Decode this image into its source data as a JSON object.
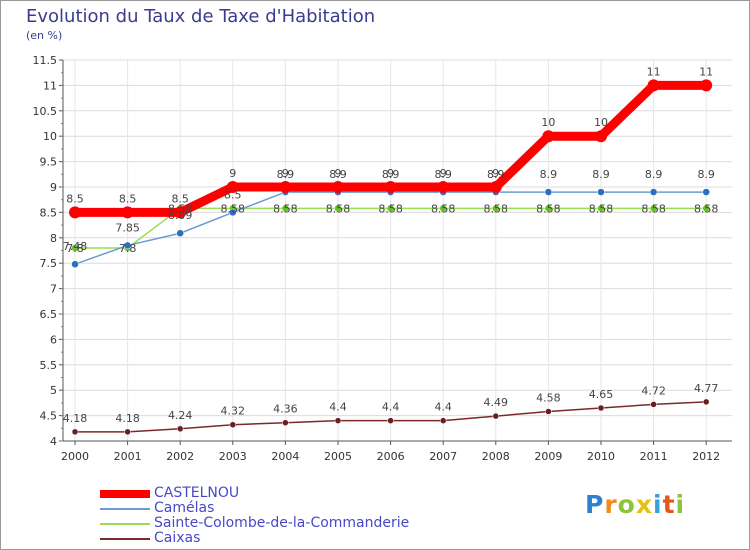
{
  "chart_data": {
    "type": "line",
    "title": "Evolution du Taux de Taxe d'Habitation",
    "subtitle": "(en %)",
    "ylim": [
      4,
      11.5
    ],
    "x": [
      "2000",
      "2001",
      "2002",
      "2003",
      "2004",
      "2005",
      "2006",
      "2007",
      "2008",
      "2009",
      "2010",
      "2011",
      "2012"
    ],
    "yticks": [
      "4",
      "4.5",
      "5",
      "5.5",
      "6",
      "6.5",
      "7",
      "7.5",
      "8",
      "8.5",
      "9",
      "9.5",
      "10",
      "10.5",
      "11",
      "11.5"
    ],
    "series": [
      {
        "name": "CASTELNOU",
        "color": "#ff0000",
        "values": [
          8.5,
          8.5,
          8.5,
          9,
          9,
          9,
          9,
          9,
          9,
          10,
          10,
          11,
          11
        ],
        "labels": [
          "8.5",
          "8.5",
          "8.5",
          "9",
          "9",
          "9",
          "9",
          "9",
          "9",
          "10",
          "10",
          "11",
          "11"
        ]
      },
      {
        "name": "Camélas",
        "color": "#6b9bd1",
        "values": [
          7.48,
          7.85,
          8.09,
          8.5,
          8.9,
          8.9,
          8.9,
          8.9,
          8.9,
          8.9,
          8.9,
          8.9,
          8.9
        ],
        "labels": [
          "7.48",
          "7.85",
          "8.09",
          "8.5",
          "8.9",
          "8.9",
          "8.9",
          "8.9",
          "8.9",
          "8.9",
          "8.9",
          "8.9",
          "8.9"
        ]
      },
      {
        "name": "Sainte-Colombe-de-la-Commanderie",
        "color": "#99dd55",
        "values": [
          7.8,
          7.8,
          8.58,
          8.58,
          8.58,
          8.58,
          8.58,
          8.58,
          8.58,
          8.58,
          8.58,
          8.58,
          8.58
        ],
        "labels": [
          "7.8",
          "7.8",
          "8.58",
          "8.58",
          "8.58",
          "8.58",
          "8.58",
          "8.58",
          "8.58",
          "8.58",
          "8.58",
          "8.58",
          "8.58"
        ]
      },
      {
        "name": "Caixas",
        "color": "#7a2a2a",
        "values": [
          4.18,
          4.18,
          4.24,
          4.32,
          4.36,
          4.4,
          4.4,
          4.4,
          4.49,
          4.58,
          4.65,
          4.72,
          4.77
        ],
        "labels": [
          "4.18",
          "4.18",
          "4.24",
          "4.32",
          "4.36",
          "4.4",
          "4.4",
          "4.4",
          "4.49",
          "4.58",
          "4.65",
          "4.72",
          "4.77"
        ]
      }
    ]
  },
  "legend": [
    {
      "label": "CASTELNOU",
      "color": "#ff0000"
    },
    {
      "label": "Camélas",
      "color": "#6b9bd1"
    },
    {
      "label": "Sainte-Colombe-de-la-Commanderie",
      "color": "#99dd55"
    },
    {
      "label": "Caixas",
      "color": "#7a2a2a"
    }
  ],
  "logo": {
    "letters": [
      "P",
      "r",
      "o",
      "x",
      "i",
      "t",
      "i"
    ],
    "colors": [
      "#2f7fd0",
      "#f08a1a",
      "#8cc43c",
      "#e8c010",
      "#3aa0e0",
      "#e05a20",
      "#8cc43c"
    ]
  }
}
